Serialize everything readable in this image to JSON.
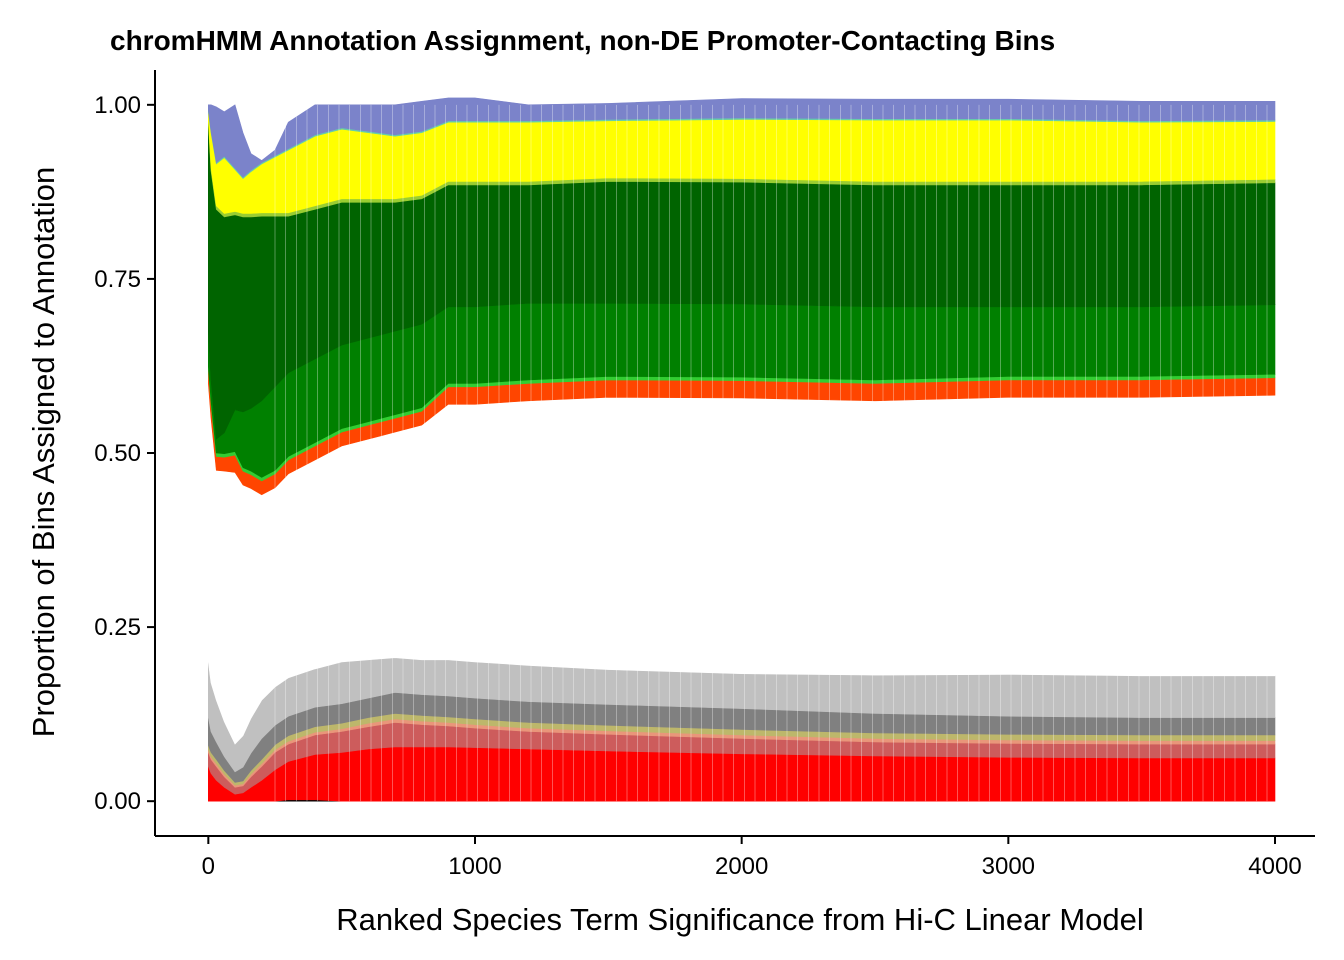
{
  "chart_data": {
    "type": "area",
    "stacked": true,
    "title": "chromHMM Annotation Assignment, non-DE Promoter-Contacting Bins",
    "xlabel": "Ranked Species Term Significance from Hi-C Linear Model",
    "ylabel": "Proportion of Bins Assigned to Annotation",
    "xlim": [
      -200,
      4150
    ],
    "ylim": [
      -0.05,
      1.05
    ],
    "x_ticks": [
      0,
      1000,
      2000,
      3000,
      4000
    ],
    "x_tick_labels": [
      "0",
      "1000",
      "2000",
      "3000",
      "4000"
    ],
    "y_ticks": [
      0,
      0.25,
      0.5,
      0.75,
      1.0
    ],
    "y_tick_labels": [
      "0.00",
      "0.25",
      "0.50",
      "0.75",
      "1.00"
    ],
    "legend": "none",
    "grid": false,
    "x": [
      0,
      10,
      30,
      60,
      100,
      130,
      160,
      200,
      250,
      300,
      400,
      500,
      600,
      700,
      800,
      900,
      1000,
      1200,
      1500,
      2000,
      2500,
      3000,
      3500,
      4000
    ],
    "series": [
      {
        "color": "#000000",
        "values": [
          0.0,
          0.0,
          0.0,
          0.0,
          0.0,
          0.0,
          0.0,
          0.0,
          0.0,
          0.002,
          0.002,
          0.0,
          0.0,
          0.0,
          0.0,
          0.0,
          0.0,
          0.0,
          0.0,
          0.0,
          0.0,
          0.0,
          0.0,
          0.0
        ]
      },
      {
        "color": "#FF0000",
        "values": [
          0.05,
          0.04,
          0.03,
          0.02,
          0.01,
          0.012,
          0.02,
          0.03,
          0.045,
          0.055,
          0.065,
          0.07,
          0.075,
          0.078,
          0.078,
          0.078,
          0.077,
          0.075,
          0.072,
          0.068,
          0.065,
          0.063,
          0.062,
          0.062
        ]
      },
      {
        "color": "#CD5C5C",
        "values": [
          0.02,
          0.02,
          0.02,
          0.015,
          0.01,
          0.01,
          0.015,
          0.02,
          0.025,
          0.025,
          0.028,
          0.03,
          0.032,
          0.035,
          0.032,
          0.03,
          0.028,
          0.025,
          0.024,
          0.022,
          0.02,
          0.02,
          0.02,
          0.02
        ]
      },
      {
        "color": "#E9967A",
        "values": [
          0.004,
          0.004,
          0.004,
          0.004,
          0.003,
          0.003,
          0.004,
          0.004,
          0.004,
          0.004,
          0.004,
          0.004,
          0.005,
          0.005,
          0.005,
          0.005,
          0.005,
          0.005,
          0.005,
          0.005,
          0.005,
          0.005,
          0.005,
          0.005
        ]
      },
      {
        "color": "#BDB76B",
        "values": [
          0.006,
          0.006,
          0.006,
          0.005,
          0.004,
          0.004,
          0.005,
          0.006,
          0.007,
          0.008,
          0.008,
          0.008,
          0.008,
          0.008,
          0.008,
          0.008,
          0.008,
          0.008,
          0.008,
          0.008,
          0.008,
          0.008,
          0.008,
          0.008
        ]
      },
      {
        "color": "#808080",
        "values": [
          0.04,
          0.03,
          0.025,
          0.02,
          0.015,
          0.02,
          0.025,
          0.03,
          0.028,
          0.028,
          0.028,
          0.028,
          0.028,
          0.03,
          0.03,
          0.03,
          0.03,
          0.03,
          0.03,
          0.03,
          0.028,
          0.026,
          0.025,
          0.025
        ]
      },
      {
        "color": "#C0C0C0",
        "values": [
          0.08,
          0.07,
          0.06,
          0.05,
          0.04,
          0.045,
          0.05,
          0.055,
          0.055,
          0.055,
          0.055,
          0.06,
          0.055,
          0.05,
          0.05,
          0.052,
          0.052,
          0.052,
          0.05,
          0.05,
          0.055,
          0.06,
          0.06,
          0.06
        ]
      },
      {
        "color": "#FFFFFF",
        "values": [
          0.4,
          0.38,
          0.33,
          0.36,
          0.39,
          0.36,
          0.33,
          0.295,
          0.286,
          0.293,
          0.3,
          0.31,
          0.317,
          0.324,
          0.337,
          0.367,
          0.37,
          0.38,
          0.391,
          0.396,
          0.394,
          0.398,
          0.4,
          0.403
        ]
      },
      {
        "color": "#FF4500",
        "values": [
          0.02,
          0.02,
          0.02,
          0.02,
          0.025,
          0.02,
          0.02,
          0.02,
          0.02,
          0.02,
          0.02,
          0.02,
          0.02,
          0.02,
          0.02,
          0.025,
          0.025,
          0.025,
          0.025,
          0.025,
          0.025,
          0.025,
          0.025,
          0.025
        ]
      },
      {
        "color": "#32CD32",
        "values": [
          0.005,
          0.005,
          0.005,
          0.005,
          0.005,
          0.005,
          0.005,
          0.005,
          0.005,
          0.005,
          0.005,
          0.005,
          0.005,
          0.005,
          0.005,
          0.005,
          0.005,
          0.005,
          0.005,
          0.005,
          0.005,
          0.005,
          0.005,
          0.005
        ]
      },
      {
        "color": "#008000",
        "values": [
          0.05,
          0.03,
          0.02,
          0.03,
          0.06,
          0.08,
          0.09,
          0.11,
          0.12,
          0.12,
          0.12,
          0.12,
          0.12,
          0.12,
          0.12,
          0.11,
          0.11,
          0.11,
          0.105,
          0.105,
          0.105,
          0.1,
          0.1,
          0.1
        ]
      },
      {
        "color": "#006400",
        "values": [
          0.3,
          0.3,
          0.33,
          0.31,
          0.28,
          0.28,
          0.275,
          0.265,
          0.245,
          0.225,
          0.215,
          0.205,
          0.195,
          0.185,
          0.18,
          0.175,
          0.175,
          0.17,
          0.175,
          0.175,
          0.175,
          0.175,
          0.175,
          0.175
        ]
      },
      {
        "color": "#9ACD32",
        "values": [
          0.005,
          0.005,
          0.005,
          0.005,
          0.005,
          0.005,
          0.005,
          0.005,
          0.005,
          0.005,
          0.005,
          0.005,
          0.005,
          0.005,
          0.005,
          0.005,
          0.005,
          0.005,
          0.005,
          0.005,
          0.005,
          0.005,
          0.005,
          0.005
        ]
      },
      {
        "color": "#FFFF00",
        "values": [
          0.01,
          0.05,
          0.06,
          0.08,
          0.06,
          0.05,
          0.06,
          0.07,
          0.08,
          0.09,
          0.1,
          0.1,
          0.095,
          0.09,
          0.09,
          0.085,
          0.085,
          0.085,
          0.082,
          0.085,
          0.088,
          0.088,
          0.085,
          0.083
        ]
      },
      {
        "color": "#66CDAA",
        "values": [
          0.002,
          0.002,
          0.002,
          0.002,
          0.002,
          0.002,
          0.002,
          0.002,
          0.002,
          0.002,
          0.002,
          0.002,
          0.002,
          0.002,
          0.002,
          0.002,
          0.002,
          0.002,
          0.002,
          0.002,
          0.002,
          0.002,
          0.002,
          0.002
        ]
      },
      {
        "color": "#7B83CA",
        "values": [
          0.008,
          0.038,
          0.08,
          0.064,
          0.091,
          0.064,
          0.024,
          0.003,
          0.008,
          0.038,
          0.043,
          0.033,
          0.038,
          0.043,
          0.043,
          0.033,
          0.033,
          0.023,
          0.023,
          0.028,
          0.028,
          0.028,
          0.028,
          0.027
        ]
      }
    ]
  }
}
